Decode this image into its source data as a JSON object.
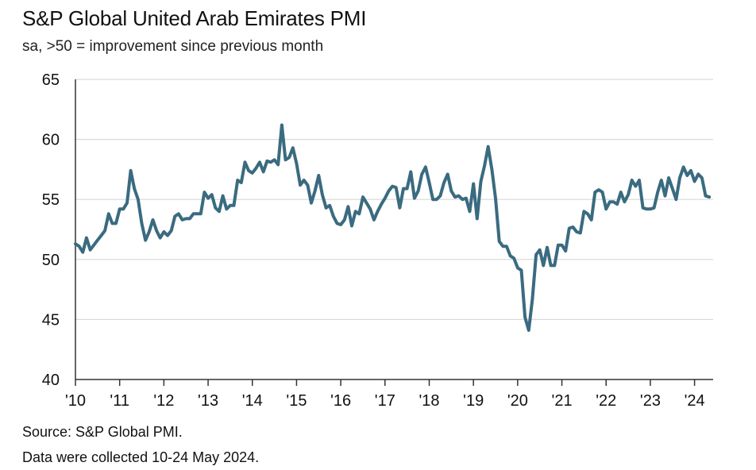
{
  "header": {
    "title": "S&P Global United Arab Emirates PMI",
    "subtitle": "sa, >50 = improvement since previous month"
  },
  "footer": {
    "source": "Source: S&P Global PMI.",
    "note": "Data were collected 10-24 May 2024."
  },
  "colors": {
    "line": "#3a6b80",
    "grid": "#d9d9d9",
    "axis": "#333333"
  },
  "chart_data": {
    "type": "line",
    "title": "S&P Global United Arab Emirates PMI",
    "subtitle": "sa, >50 = improvement since previous month",
    "xlabel": "",
    "ylabel": "",
    "ylim": [
      40,
      65
    ],
    "yticks": [
      40,
      45,
      50,
      55,
      60,
      65
    ],
    "xlim": [
      2010.0,
      2024.42
    ],
    "xticks": [
      {
        "label": "'10",
        "year": 2010
      },
      {
        "label": "'11",
        "year": 2011
      },
      {
        "label": "'12",
        "year": 2012
      },
      {
        "label": "'13",
        "year": 2013
      },
      {
        "label": "'14",
        "year": 2014
      },
      {
        "label": "'15",
        "year": 2015
      },
      {
        "label": "'16",
        "year": 2016
      },
      {
        "label": "'17",
        "year": 2017
      },
      {
        "label": "'18",
        "year": 2018
      },
      {
        "label": "'19",
        "year": 2019
      },
      {
        "label": "'20",
        "year": 2020
      },
      {
        "label": "'21",
        "year": 2021
      },
      {
        "label": "'22",
        "year": 2022
      },
      {
        "label": "'23",
        "year": 2023
      },
      {
        "label": "'24",
        "year": 2024
      }
    ],
    "grid": "horizontal",
    "series": [
      {
        "name": "UAE PMI",
        "start": "2010-01",
        "frequency": "monthly",
        "values": [
          51.3,
          51.1,
          50.6,
          51.8,
          50.8,
          51.2,
          51.6,
          52.0,
          52.4,
          53.8,
          53.0,
          53.0,
          54.2,
          54.2,
          54.7,
          57.4,
          55.9,
          55.0,
          53.0,
          51.6,
          52.3,
          53.3,
          52.4,
          51.8,
          52.3,
          52.0,
          52.4,
          53.6,
          53.8,
          53.3,
          53.4,
          53.4,
          53.8,
          53.8,
          53.8,
          55.6,
          55.1,
          55.4,
          54.3,
          54.0,
          55.3,
          54.2,
          54.5,
          54.5,
          56.6,
          56.4,
          58.1,
          57.4,
          57.2,
          57.6,
          58.1,
          57.3,
          58.2,
          58.1,
          58.3,
          57.9,
          61.2,
          58.3,
          58.5,
          59.3,
          58.0,
          56.2,
          56.6,
          56.2,
          54.7,
          55.7,
          57.0,
          55.4,
          54.3,
          54.5,
          53.6,
          53.0,
          52.9,
          53.3,
          54.4,
          52.8,
          54.0,
          53.8,
          55.2,
          54.7,
          54.2,
          53.3,
          54.0,
          54.6,
          55.1,
          55.7,
          56.1,
          56.0,
          54.3,
          55.9,
          55.9,
          57.3,
          55.1,
          55.7,
          57.1,
          57.7,
          56.4,
          55.0,
          55.0,
          55.3,
          56.4,
          57.1,
          55.7,
          55.2,
          55.3,
          55.0,
          55.1,
          54.0,
          56.3,
          53.4,
          56.5,
          57.8,
          59.4,
          57.5,
          55.1,
          51.5,
          51.1,
          51.1,
          50.3,
          50.1,
          49.3,
          49.1,
          45.2,
          44.1,
          46.7,
          50.4,
          50.8,
          49.5,
          51.0,
          49.5,
          49.5,
          51.2,
          51.2,
          50.7,
          52.6,
          52.7,
          52.3,
          52.2,
          54.0,
          53.8,
          53.3,
          55.6,
          55.8,
          55.6,
          54.2,
          54.8,
          54.8,
          54.6,
          55.6,
          54.8,
          55.4,
          56.6,
          56.1,
          56.6,
          54.3,
          54.2,
          54.2,
          54.3,
          55.6,
          56.6,
          55.3,
          56.8,
          55.9,
          55.0,
          56.8,
          57.7,
          57.0,
          57.4,
          56.5,
          57.1,
          56.8,
          55.3,
          55.2
        ]
      }
    ]
  }
}
